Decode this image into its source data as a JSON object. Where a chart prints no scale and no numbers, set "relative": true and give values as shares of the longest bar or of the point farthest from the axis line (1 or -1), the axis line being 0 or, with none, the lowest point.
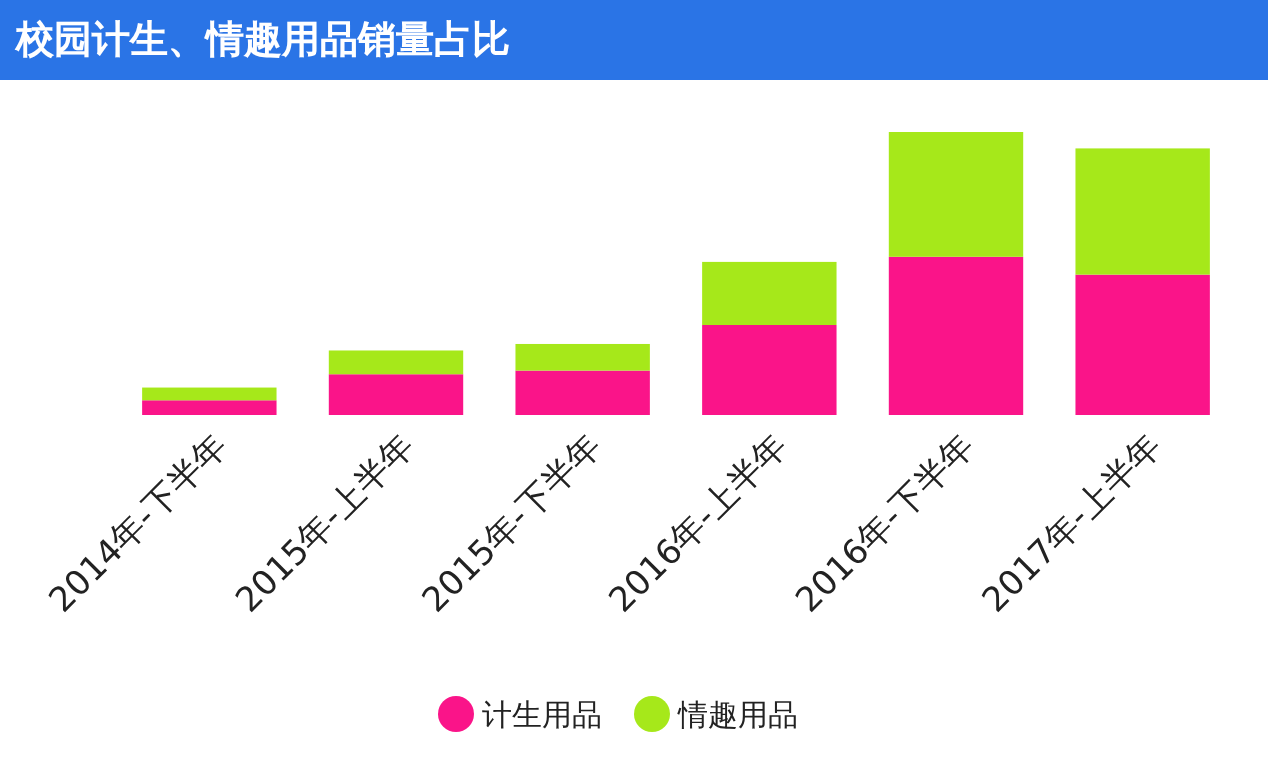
{
  "chart_data": {
    "type": "bar",
    "title": "校园计生、情趣用品销量占比",
    "relative": true,
    "stacked": true,
    "legend": "bottom",
    "categories": [
      "2014年-下半年",
      "2015年-上半年",
      "2015年-下半年",
      "2016年-上半年",
      "2016年-下半年",
      "2017年-上半年"
    ],
    "series": [
      {
        "name": "计生用品",
        "color": "#fa1489",
        "values": [
          0.052,
          0.144,
          0.157,
          0.318,
          0.559,
          0.496
        ]
      },
      {
        "name": "情趣用品",
        "color": "#a6e81a",
        "values": [
          0.045,
          0.084,
          0.094,
          0.223,
          0.441,
          0.446
        ]
      }
    ]
  }
}
